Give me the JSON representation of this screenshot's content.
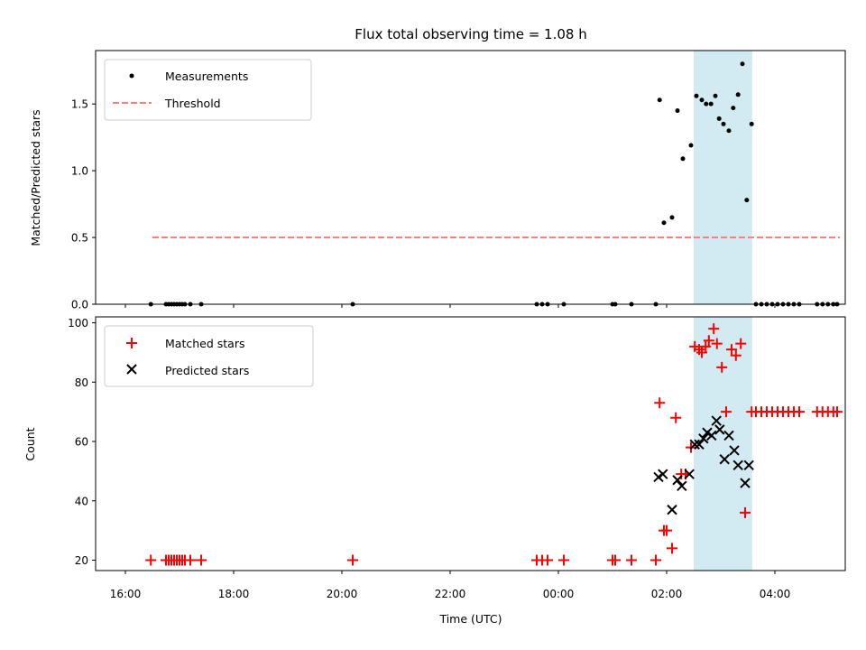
{
  "chart_data": {
    "title": "Flux total observing time = 1.08 h",
    "colors": {
      "measurement": "#000000",
      "threshold": "#ff7f7f",
      "matched": "#ff0000",
      "predicted": "#000000",
      "highlight": "#add8e6"
    },
    "x_axis": {
      "label": "Time (UTC)",
      "unit": "hours since 16:00",
      "range": [
        -0.55,
        13.3
      ],
      "ticks": [
        0,
        2,
        4,
        6,
        8,
        10,
        12
      ],
      "tick_labels": [
        "16:00",
        "18:00",
        "20:00",
        "22:00",
        "00:00",
        "02:00",
        "04:00"
      ]
    },
    "highlight_band": [
      10.5,
      11.58
    ],
    "top": {
      "type": "scatter",
      "ylabel": "Matched/Predicted stars",
      "ylim": [
        0,
        1.9
      ],
      "yticks": [
        0.0,
        0.5,
        1.0,
        1.5
      ],
      "ytick_labels": [
        "0.0",
        "0.5",
        "1.0",
        "1.5"
      ],
      "legend": {
        "measurements": "Measurements",
        "threshold": "Threshold"
      },
      "threshold": {
        "value": 0.5,
        "x_range": [
          0.5,
          13.2
        ]
      },
      "measurements": [
        [
          0.47,
          0
        ],
        [
          0.75,
          0
        ],
        [
          0.8,
          0
        ],
        [
          0.85,
          0
        ],
        [
          0.9,
          0
        ],
        [
          0.95,
          0
        ],
        [
          1.0,
          0
        ],
        [
          1.05,
          0
        ],
        [
          1.1,
          0
        ],
        [
          1.2,
          0
        ],
        [
          1.4,
          0
        ],
        [
          4.2,
          0
        ],
        [
          7.6,
          0
        ],
        [
          7.7,
          0
        ],
        [
          7.8,
          0
        ],
        [
          8.1,
          0
        ],
        [
          9.0,
          0
        ],
        [
          9.05,
          0
        ],
        [
          9.35,
          0
        ],
        [
          9.8,
          0
        ],
        [
          9.87,
          1.53
        ],
        [
          9.95,
          0.61
        ],
        [
          10.1,
          0.65
        ],
        [
          10.2,
          1.45
        ],
        [
          10.3,
          1.09
        ],
        [
          10.45,
          1.19
        ],
        [
          10.55,
          1.56
        ],
        [
          10.65,
          1.53
        ],
        [
          10.73,
          1.5
        ],
        [
          10.82,
          1.5
        ],
        [
          10.9,
          1.56
        ],
        [
          10.97,
          1.39
        ],
        [
          11.05,
          1.35
        ],
        [
          11.15,
          1.3
        ],
        [
          11.23,
          1.47
        ],
        [
          11.32,
          1.57
        ],
        [
          11.4,
          1.8
        ],
        [
          11.48,
          0.78
        ],
        [
          11.57,
          1.35
        ],
        [
          11.65,
          0
        ],
        [
          11.75,
          0
        ],
        [
          11.85,
          0
        ],
        [
          11.95,
          0
        ],
        [
          12.05,
          0
        ],
        [
          12.15,
          0
        ],
        [
          12.25,
          0
        ],
        [
          12.35,
          0
        ],
        [
          12.45,
          0
        ],
        [
          12.78,
          0
        ],
        [
          12.88,
          0
        ],
        [
          12.98,
          0
        ],
        [
          13.08,
          0
        ],
        [
          13.15,
          0
        ]
      ]
    },
    "bottom": {
      "type": "scatter",
      "ylabel": "Count",
      "xlabel": "Time (UTC)",
      "ylim": [
        16.5,
        102
      ],
      "yticks": [
        20,
        40,
        60,
        80,
        100
      ],
      "ytick_labels": [
        "20",
        "40",
        "60",
        "80",
        "100"
      ],
      "legend": {
        "matched": "Matched stars",
        "predicted": "Predicted stars"
      },
      "matched": [
        [
          0.47,
          20
        ],
        [
          0.75,
          20
        ],
        [
          0.8,
          20
        ],
        [
          0.85,
          20
        ],
        [
          0.9,
          20
        ],
        [
          0.95,
          20
        ],
        [
          1.0,
          20
        ],
        [
          1.05,
          20
        ],
        [
          1.1,
          20
        ],
        [
          1.2,
          20
        ],
        [
          1.4,
          20
        ],
        [
          4.2,
          20
        ],
        [
          7.6,
          20
        ],
        [
          7.7,
          20
        ],
        [
          7.8,
          20
        ],
        [
          8.1,
          20
        ],
        [
          9.0,
          20
        ],
        [
          9.05,
          20
        ],
        [
          9.35,
          20
        ],
        [
          9.8,
          20
        ],
        [
          9.87,
          73
        ],
        [
          9.95,
          30
        ],
        [
          10.0,
          30
        ],
        [
          10.1,
          24
        ],
        [
          10.17,
          68
        ],
        [
          10.27,
          49
        ],
        [
          10.35,
          49
        ],
        [
          10.45,
          58
        ],
        [
          10.52,
          92
        ],
        [
          10.6,
          91
        ],
        [
          10.65,
          90
        ],
        [
          10.72,
          92
        ],
        [
          10.78,
          94
        ],
        [
          10.87,
          98
        ],
        [
          10.93,
          93
        ],
        [
          11.02,
          85
        ],
        [
          11.1,
          70
        ],
        [
          11.2,
          91
        ],
        [
          11.28,
          89
        ],
        [
          11.37,
          93
        ],
        [
          11.45,
          36
        ],
        [
          11.57,
          70
        ],
        [
          11.65,
          70
        ],
        [
          11.75,
          70
        ],
        [
          11.85,
          70
        ],
        [
          11.95,
          70
        ],
        [
          12.05,
          70
        ],
        [
          12.15,
          70
        ],
        [
          12.25,
          70
        ],
        [
          12.35,
          70
        ],
        [
          12.45,
          70
        ],
        [
          12.78,
          70
        ],
        [
          12.88,
          70
        ],
        [
          12.98,
          70
        ],
        [
          13.08,
          70
        ],
        [
          13.15,
          70
        ]
      ],
      "predicted": [
        [
          9.85,
          48
        ],
        [
          9.93,
          49
        ],
        [
          10.1,
          37
        ],
        [
          10.2,
          47
        ],
        [
          10.28,
          45
        ],
        [
          10.42,
          49
        ],
        [
          10.52,
          59
        ],
        [
          10.6,
          59
        ],
        [
          10.68,
          61
        ],
        [
          10.75,
          63
        ],
        [
          10.83,
          62
        ],
        [
          10.92,
          67
        ],
        [
          10.98,
          64
        ],
        [
          11.07,
          54
        ],
        [
          11.15,
          62
        ],
        [
          11.25,
          57
        ],
        [
          11.32,
          52
        ],
        [
          11.45,
          46
        ],
        [
          11.52,
          52
        ]
      ]
    }
  }
}
